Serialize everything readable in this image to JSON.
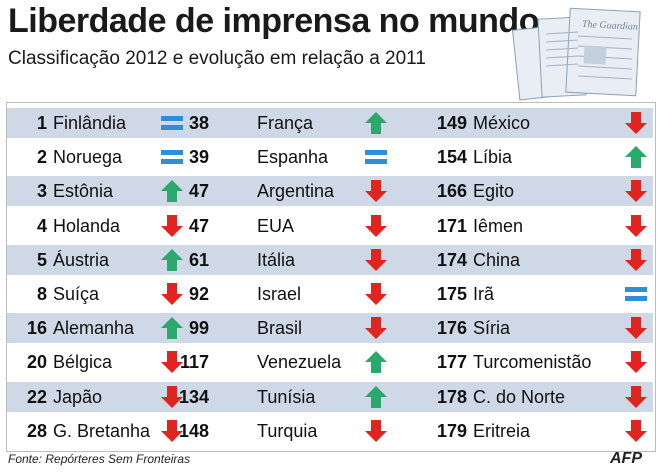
{
  "title": "Liberdade de imprensa no mundo",
  "subtitle": "Classificação 2012 e evolução em relação a 2011",
  "colors": {
    "up": "#2ba86b",
    "down": "#e0241f",
    "same": "#2e8fd6",
    "row_shade": "#cfd8e6"
  },
  "icon_names": {
    "up": "arrow-up-icon",
    "down": "arrow-down-icon",
    "same": "equal-icon"
  },
  "columns": [
    [
      {
        "rank": "1",
        "country": "Finlândia",
        "trend": "same"
      },
      {
        "rank": "2",
        "country": "Noruega",
        "trend": "same"
      },
      {
        "rank": "3",
        "country": "Estônia",
        "trend": "up"
      },
      {
        "rank": "4",
        "country": "Holanda",
        "trend": "down"
      },
      {
        "rank": "5",
        "country": "Áustria",
        "trend": "up"
      },
      {
        "rank": "8",
        "country": "Suíça",
        "trend": "down"
      },
      {
        "rank": "16",
        "country": "Alemanha",
        "trend": "up"
      },
      {
        "rank": "20",
        "country": "Bélgica",
        "trend": "down"
      },
      {
        "rank": "22",
        "country": "Japão",
        "trend": "down"
      },
      {
        "rank": "28",
        "country": "G. Bretanha",
        "trend": "down"
      }
    ],
    [
      {
        "rank": "38",
        "country": "França",
        "trend": "up"
      },
      {
        "rank": "39",
        "country": "Espanha",
        "trend": "same"
      },
      {
        "rank": "47",
        "country": "Argentina",
        "trend": "down"
      },
      {
        "rank": "47",
        "country": "EUA",
        "trend": "down"
      },
      {
        "rank": "61",
        "country": "Itália",
        "trend": "down"
      },
      {
        "rank": "92",
        "country": "Israel",
        "trend": "down"
      },
      {
        "rank": "99",
        "country": "Brasil",
        "trend": "down"
      },
      {
        "rank": "117",
        "country": "Venezuela",
        "trend": "up"
      },
      {
        "rank": "134",
        "country": "Tunísia",
        "trend": "up"
      },
      {
        "rank": "148",
        "country": "Turquia",
        "trend": "down"
      }
    ],
    [
      {
        "rank": "149",
        "country": "México",
        "trend": "down"
      },
      {
        "rank": "154",
        "country": "Líbia",
        "trend": "up"
      },
      {
        "rank": "166",
        "country": "Egito",
        "trend": "down"
      },
      {
        "rank": "171",
        "country": "Iêmen",
        "trend": "down"
      },
      {
        "rank": "174",
        "country": "China",
        "trend": "down"
      },
      {
        "rank": "175",
        "country": "Irã",
        "trend": "same"
      },
      {
        "rank": "176",
        "country": "Síria",
        "trend": "down"
      },
      {
        "rank": "177",
        "country": "Turcomenistão",
        "trend": "down"
      },
      {
        "rank": "178",
        "country": "C. do Norte",
        "trend": "down"
      },
      {
        "rank": "179",
        "country": "Eritreia",
        "trend": "down"
      }
    ]
  ],
  "source": "Fonte: Repórteres Sem Fronteiras",
  "logo": "AFP",
  "newspaper_masthead": "The Guardian"
}
